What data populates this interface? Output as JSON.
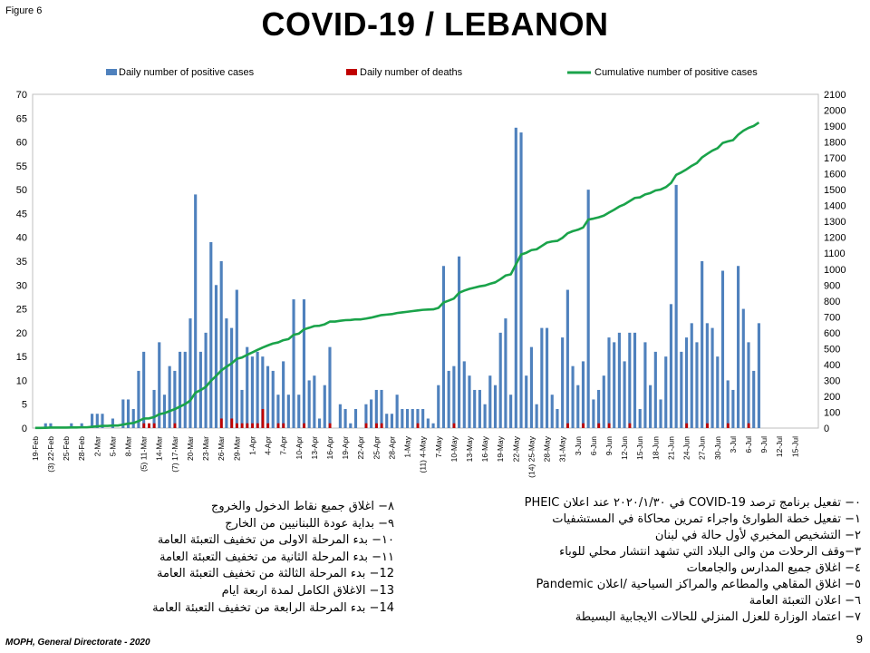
{
  "figure_label": "Figure 6",
  "page_number": "9",
  "footer": "MOPH, General Directorate - 2020",
  "colors": {
    "cases": "#4f81bd",
    "deaths": "#c00000",
    "cumulative": "#1aa34a"
  },
  "chart_data": {
    "type": "bar",
    "title": "COVID-19 / LEBANON",
    "legend": [
      "Daily number of positive cases",
      "Daily number of deaths",
      "Cumulative number of positive cases"
    ],
    "legend_position": "top",
    "x_tick_labels": [
      "19-Feb",
      "(3) 22-Feb",
      "25-Feb",
      "28-Feb",
      "2-Mar",
      "5-Mar",
      "8-Mar",
      "(5) 11-Mar",
      "14-Mar",
      "(7) 17-Mar",
      "20-Mar",
      "23-Mar",
      "26-Mar",
      "29-Mar",
      "1-Apr",
      "4-Apr",
      "7-Apr",
      "10-Apr",
      "13-Apr",
      "16-Apr",
      "19-Apr",
      "22-Apr",
      "25-Apr",
      "28-Apr",
      "1-May",
      "(11) 4-May",
      "7-May",
      "10-May",
      "13-May",
      "16-May",
      "19-May",
      "22-May",
      "(14) 25-May",
      "28-May",
      "31-May",
      "3-Jun",
      "6-Jun",
      "9-Jun",
      "12-Jun",
      "15-Jun",
      "18-Jun",
      "21-Jun",
      "24-Jun",
      "27-Jun",
      "30-Jun",
      "3-Jul",
      "6-Jul",
      "9-Jul",
      "12-Jul",
      "15-Jul"
    ],
    "y_left_ticks": [
      0,
      5,
      10,
      15,
      20,
      25,
      30,
      35,
      40,
      45,
      50,
      55,
      60,
      65,
      70
    ],
    "y_right_ticks": [
      0,
      100,
      200,
      300,
      400,
      500,
      600,
      700,
      800,
      900,
      1000,
      1100,
      1200,
      1300,
      1400,
      1500,
      1600,
      1700,
      1800,
      1900,
      2000,
      2100
    ],
    "ylim_left": [
      0,
      70
    ],
    "ylim_right": [
      0,
      2100
    ],
    "x_start": "19-Feb",
    "x_end": "17-Jul",
    "series": [
      {
        "name": "Daily number of positive cases",
        "type": "bar",
        "axis": "left",
        "values": [
          0,
          0,
          1,
          1,
          0,
          0,
          0,
          1,
          0,
          1,
          0,
          3,
          3,
          3,
          0,
          2,
          0,
          6,
          6,
          4,
          12,
          16,
          0,
          8,
          18,
          7,
          13,
          12,
          16,
          16,
          23,
          49,
          16,
          20,
          39,
          30,
          35,
          23,
          21,
          29,
          8,
          17,
          15,
          16,
          15,
          13,
          12,
          7,
          14,
          7,
          27,
          7,
          27,
          10,
          11,
          2,
          9,
          17,
          0,
          5,
          4,
          1,
          4,
          0,
          5,
          6,
          8,
          8,
          3,
          3,
          7,
          4,
          4,
          4,
          4,
          4,
          2,
          1,
          9,
          34,
          12,
          13,
          36,
          14,
          11,
          8,
          8,
          5,
          11,
          9,
          20,
          23,
          7,
          63,
          62,
          11,
          17,
          5,
          21,
          21,
          7,
          4,
          19,
          29,
          13,
          9,
          14,
          50,
          6,
          8,
          11,
          19,
          18,
          20,
          14,
          20,
          20,
          4,
          18,
          9,
          16,
          6,
          15,
          26,
          51,
          16,
          19,
          22,
          18,
          35,
          22,
          21,
          15,
          33,
          10,
          8,
          34,
          25,
          18,
          12,
          22,
          0,
          0,
          0,
          0,
          0,
          0,
          0,
          0,
          0,
          0,
          0
        ],
        "note": "daily counts from 19-Feb to 17-Jul"
      },
      {
        "name": "Daily number of deaths",
        "type": "bar",
        "axis": "left",
        "values": [
          0,
          0,
          0,
          0,
          0,
          0,
          0,
          0,
          0,
          0,
          0,
          0,
          0,
          0,
          0,
          0,
          0,
          0,
          0,
          0,
          0,
          1,
          1,
          1,
          0,
          0,
          0,
          1,
          0,
          0,
          0,
          0,
          0,
          0,
          0,
          0,
          2,
          0,
          2,
          1,
          1,
          1,
          1,
          1,
          4,
          1,
          0,
          1,
          1,
          0,
          0,
          0,
          1,
          0,
          0,
          0,
          0,
          1,
          0,
          0,
          0,
          0,
          0,
          0,
          1,
          0,
          1,
          1,
          0,
          0,
          0,
          0,
          0,
          0,
          1,
          0,
          0,
          0,
          0,
          0,
          0,
          1,
          0,
          0,
          0,
          0,
          0,
          0,
          0,
          0,
          0,
          0,
          0,
          0,
          0,
          0,
          0,
          0,
          0,
          0,
          0,
          0,
          0,
          1,
          0,
          0,
          1,
          0,
          0,
          1,
          0,
          1,
          0,
          0,
          0,
          1,
          0,
          0,
          0,
          0,
          0,
          0,
          0,
          0,
          0,
          0,
          1,
          0,
          0,
          0,
          1,
          0,
          0,
          0,
          1,
          0,
          0,
          0,
          1,
          0,
          0,
          0,
          0,
          0,
          0,
          0,
          0,
          0,
          0,
          0,
          0,
          0
        ]
      },
      {
        "name": "Cumulative number of positive cases",
        "type": "line",
        "axis": "right",
        "values": [
          1,
          1,
          2,
          3,
          3,
          3,
          3,
          4,
          4,
          5,
          5,
          8,
          11,
          14,
          14,
          16,
          16,
          22,
          28,
          32,
          44,
          60,
          61,
          69,
          87,
          94,
          107,
          119,
          135,
          151,
          174,
          223,
          239,
          259,
          298,
          328,
          363,
          386,
          407,
          436,
          444,
          461,
          476,
          492,
          507,
          520,
          532,
          539,
          553,
          560,
          587,
          594,
          621,
          631,
          642,
          644,
          653,
          670,
          670,
          675,
          679,
          680,
          684,
          684,
          689,
          695,
          703,
          711,
          714,
          717,
          724,
          728,
          732,
          736,
          740,
          744,
          746,
          747,
          756,
          790,
          802,
          815,
          851,
          865,
          876,
          884,
          892,
          897,
          908,
          917,
          937,
          960,
          967,
          1030,
          1092,
          1103,
          1120,
          1125,
          1146,
          1167,
          1174,
          1178,
          1197,
          1226,
          1239,
          1248,
          1262,
          1312,
          1318,
          1326,
          1337,
          1356,
          1374,
          1394,
          1408,
          1428,
          1448,
          1452,
          1470,
          1479,
          1495,
          1501,
          1516,
          1542,
          1593,
          1609,
          1628,
          1650,
          1668,
          1703,
          1725,
          1746,
          1761,
          1794,
          1804,
          1812,
          1846,
          1871,
          1889,
          1901,
          1923
        ]
      }
    ]
  },
  "notes_right": [
    "٠− تفعيل برنامج ترصد COVID-19 في ٢٠٢٠/١/٣٠ عند اعلان PHEIC",
    "١− تفعيل خطة الطوارئ واجراء تمرين محاكاة في المستشفيات",
    "٢− التشخيص المخبري لأول حالة في لبنان",
    "٣−وقف الرحلات من والى البلاد التي تشهد انتشار محلي للوباء",
    "٤− اغلاق جميع المدارس والجامعات",
    "٥− اغلاق المقاهي والمطاعم والمراكز السياحية /اعلان Pandemic",
    "٦− اعلان التعبئة العامة",
    "٧− اعتماد الوزارة للعزل المنزلي للحالات الايجابية البسيطة"
  ],
  "notes_left": [
    "٨− اغلاق جميع نقاط الدخول والخروج",
    "٩− بداية عودة اللبنانيين من الخارج",
    "١٠− بدء المرحلة الاولى من تخفيف التعبئة العامة",
    "١١− بدء المرحلة الثانية من تخفيف التعبئة العامة",
    "12− بدء المرحلة الثالثة من تخفيف التعبئة العامة",
    "13− الاغلاق الكامل لمدة اربعة ايام",
    "14− بدء المرحلة الرابعة من تخفيف التعبئة العامة"
  ]
}
